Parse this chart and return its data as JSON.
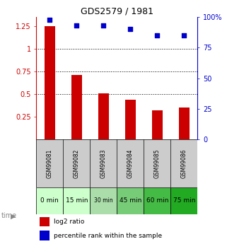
{
  "title": "GDS2579 / 1981",
  "categories": [
    "GSM99081",
    "GSM99082",
    "GSM99083",
    "GSM99084",
    "GSM99085",
    "GSM99086"
  ],
  "time_labels": [
    "0 min",
    "15 min",
    "30 min",
    "45 min",
    "60 min",
    "75 min"
  ],
  "log2_values": [
    1.25,
    0.71,
    0.51,
    0.44,
    0.32,
    0.35
  ],
  "percentile_values": [
    98,
    93,
    93,
    90,
    85,
    85
  ],
  "bar_color": "#cc0000",
  "dot_color": "#0000cc",
  "left_ylim": [
    0,
    1.35
  ],
  "right_ylim": [
    0,
    100
  ],
  "left_yticks": [
    0.25,
    0.5,
    0.75,
    1.0,
    1.25
  ],
  "left_ytick_labels": [
    "0.25",
    "0.5",
    "0.75",
    "1",
    "1.25"
  ],
  "right_yticks": [
    0,
    25,
    50,
    75,
    100
  ],
  "right_ytick_labels": [
    "0",
    "25",
    "50",
    "75",
    "100%"
  ],
  "dotted_lines": [
    0.5,
    0.75,
    1.0
  ],
  "time_colors": [
    "#ccffcc",
    "#ccffcc",
    "#aaddaa",
    "#77cc77",
    "#44bb44",
    "#22aa22"
  ],
  "sample_bg_color": "#cccccc",
  "legend_red_label": "log2 ratio",
  "legend_blue_label": "percentile rank within the sample",
  "bar_width": 0.4
}
